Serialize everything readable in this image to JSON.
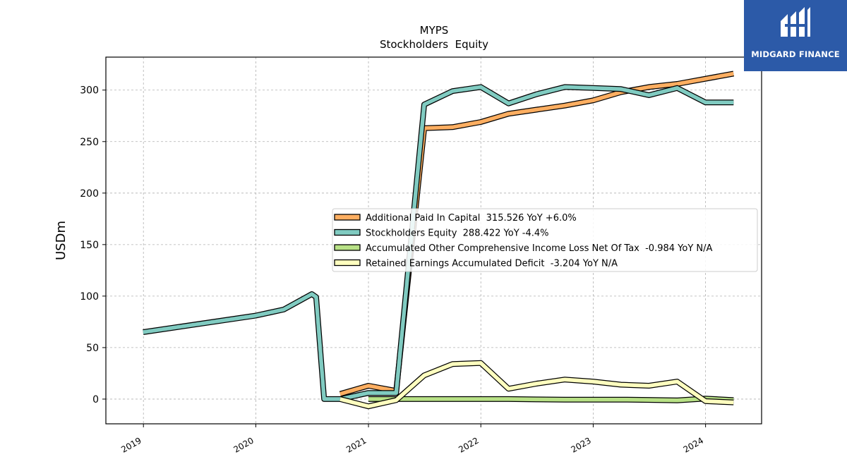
{
  "chart_data": {
    "type": "line",
    "title": "MYPS",
    "subtitle": "Stockholders  Equity",
    "ylabel": "USDm",
    "xlabel": "",
    "ylim": [
      -24,
      332
    ],
    "xlim": [
      "2018-09-01",
      "2024-07-01"
    ],
    "yticks": [
      0,
      50,
      100,
      150,
      200,
      250,
      300
    ],
    "xticks": [
      "2019",
      "2020",
      "2021",
      "2022",
      "2023",
      "2024"
    ],
    "grid": true,
    "legend_position": "center-right",
    "series": [
      {
        "name": "Additional Paid In Capital  315.526 YoY +6.0%",
        "color": "#fdae61",
        "x": [
          "2020-10-01",
          "2021-01-01",
          "2021-04-01",
          "2021-07-01",
          "2021-10-01",
          "2022-01-01",
          "2022-04-01",
          "2022-07-01",
          "2022-10-01",
          "2023-01-01",
          "2023-04-01",
          "2023-07-01",
          "2023-10-01",
          "2024-01-01",
          "2024-04-01"
        ],
        "y": [
          5,
          13,
          8,
          263,
          264,
          269,
          277,
          281,
          285,
          290,
          298,
          303,
          306,
          311,
          316
        ]
      },
      {
        "name": "Stockholders Equity  288.422 YoY -4.4%",
        "color": "#80cbc1",
        "x": [
          "2018-12-31",
          "2019-12-31",
          "2020-04-01",
          "2020-07-01",
          "2020-07-15",
          "2020-08-10",
          "2020-10-01",
          "2021-01-01",
          "2021-04-01",
          "2021-07-01",
          "2021-10-01",
          "2022-01-01",
          "2022-04-01",
          "2022-07-01",
          "2022-10-01",
          "2023-01-01",
          "2023-04-01",
          "2023-07-01",
          "2023-10-01",
          "2024-01-01",
          "2024-04-01"
        ],
        "y": [
          65,
          81,
          87,
          102,
          99,
          0,
          0,
          6,
          6,
          286,
          299,
          303,
          287,
          296,
          303,
          302,
          301,
          295,
          302,
          288,
          288
        ]
      },
      {
        "name": "Accumulated Other Comprehensive Income Loss Net Of Tax  -0.984 YoY N/A",
        "color": "#b8e186",
        "x": [
          "2021-01-01",
          "2021-04-01",
          "2021-07-01",
          "2021-10-01",
          "2022-01-01",
          "2022-04-01",
          "2022-07-01",
          "2022-10-01",
          "2023-01-01",
          "2023-04-01",
          "2023-07-01",
          "2023-10-01",
          "2024-01-01",
          "2024-04-01"
        ],
        "y": [
          0,
          0,
          0,
          0,
          0,
          0,
          -0.3,
          -0.5,
          -0.5,
          -0.5,
          -0.8,
          -1.2,
          0.5,
          -0.984
        ]
      },
      {
        "name": "Retained Earnings Accumulated Deficit  -3.204 YoY N/A",
        "color": "#ffffbf",
        "x": [
          "2020-10-01",
          "2021-01-01",
          "2021-04-01",
          "2021-07-01",
          "2021-10-01",
          "2022-01-01",
          "2022-04-01",
          "2022-07-01",
          "2022-10-01",
          "2023-01-01",
          "2023-04-01",
          "2023-07-01",
          "2023-10-01",
          "2024-01-01",
          "2024-04-01"
        ],
        "y": [
          0,
          -7,
          -1,
          23,
          34,
          35,
          10,
          15,
          19,
          17,
          14,
          13,
          17,
          -2,
          -3.204
        ]
      }
    ]
  },
  "logo": {
    "text": "MIDGARD FINANCE",
    "background": "#2c5aa8"
  }
}
